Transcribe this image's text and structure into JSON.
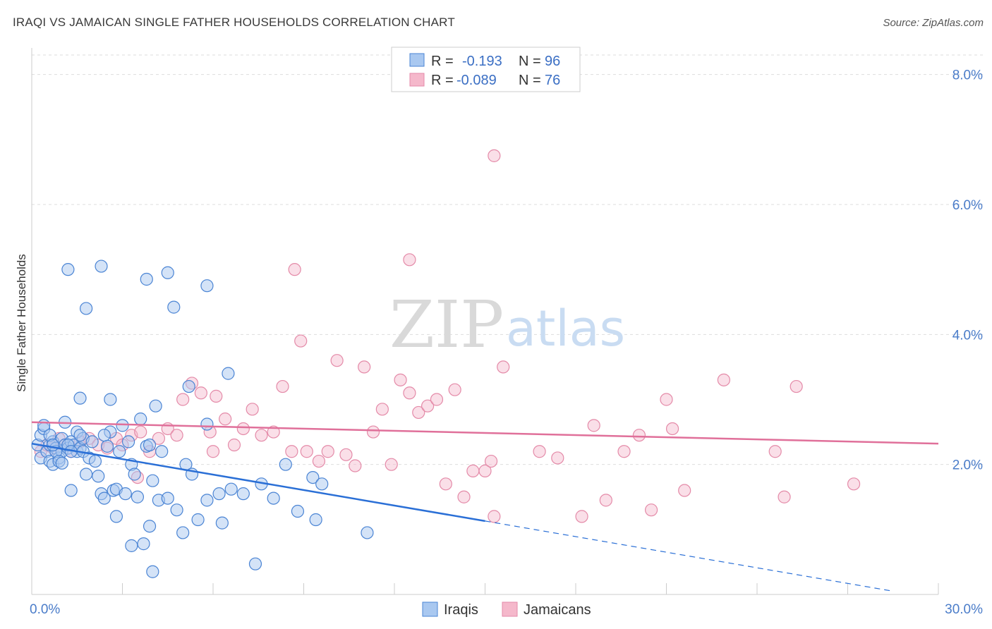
{
  "title": "IRAQI VS JAMAICAN SINGLE FATHER HOUSEHOLDS CORRELATION CHART",
  "source": "Source: ZipAtlas.com",
  "watermark": {
    "zip": "ZIP",
    "atlas": "atlas"
  },
  "colors": {
    "iraqi_fill": "#a9c8f0",
    "iraqi_stroke": "#4a84d4",
    "iraqi_line": "#2a6fd6",
    "jamaican_fill": "#f5b8cb",
    "jamaican_stroke": "#e48aa8",
    "jamaican_line": "#e0709a",
    "tick_text": "#4a7cc9",
    "grid": "#dddddd"
  },
  "legend": {
    "rows": [
      {
        "r_label": "R =",
        "r_value": "-0.193",
        "n_label": "N =",
        "n_value": "96"
      },
      {
        "r_label": "R =",
        "r_value": "-0.089",
        "n_label": "N =",
        "n_value": "76"
      }
    ]
  },
  "chart_data": {
    "type": "scatter",
    "title": "IRAQI VS JAMAICAN SINGLE FATHER HOUSEHOLDS CORRELATION CHART",
    "xlabel": "",
    "ylabel": "Single Father Households",
    "xlim": [
      0,
      30
    ],
    "ylim": [
      0,
      8.3
    ],
    "x_tick_labels": [
      "0.0%",
      "30.0%"
    ],
    "y_ticks": [
      2,
      4,
      6,
      8
    ],
    "y_tick_labels": [
      "2.0%",
      "4.0%",
      "6.0%",
      "8.0%"
    ],
    "legend_bottom": [
      "Iraqis",
      "Jamaicans"
    ],
    "series": [
      {
        "name": "Iraqis",
        "r": -0.193,
        "n": 96,
        "trend": {
          "x0": 0,
          "y0": 2.32,
          "x1": 15,
          "y1": 1.13,
          "dash_x1": 28.5,
          "dash_y1": 0.05
        },
        "points": [
          [
            0.2,
            2.3
          ],
          [
            0.3,
            2.45
          ],
          [
            0.3,
            2.1
          ],
          [
            0.4,
            2.55
          ],
          [
            0.5,
            2.2
          ],
          [
            0.6,
            2.3
          ],
          [
            0.6,
            2.05
          ],
          [
            0.7,
            2.35
          ],
          [
            0.7,
            2.0
          ],
          [
            0.8,
            2.25
          ],
          [
            0.9,
            2.1
          ],
          [
            1.0,
            2.4
          ],
          [
            1.0,
            2.2
          ],
          [
            1.1,
            2.3
          ],
          [
            1.1,
            2.65
          ],
          [
            1.2,
            2.25
          ],
          [
            1.3,
            2.35
          ],
          [
            1.4,
            2.3
          ],
          [
            1.5,
            2.5
          ],
          [
            1.5,
            2.2
          ],
          [
            1.6,
            2.25
          ],
          [
            1.7,
            2.4
          ],
          [
            1.7,
            2.2
          ],
          [
            1.8,
            1.85
          ],
          [
            1.9,
            2.1
          ],
          [
            0.4,
            2.6
          ],
          [
            0.6,
            2.45
          ],
          [
            0.8,
            2.2
          ],
          [
            0.9,
            2.05
          ],
          [
            1.2,
            2.3
          ],
          [
            1.3,
            2.2
          ],
          [
            1.6,
            2.45
          ],
          [
            2.0,
            2.35
          ],
          [
            2.1,
            2.05
          ],
          [
            2.2,
            1.82
          ],
          [
            2.3,
            1.55
          ],
          [
            2.4,
            1.48
          ],
          [
            2.5,
            2.28
          ],
          [
            2.6,
            2.5
          ],
          [
            2.7,
            1.6
          ],
          [
            2.8,
            1.62
          ],
          [
            2.9,
            2.2
          ],
          [
            3.0,
            2.6
          ],
          [
            3.2,
            2.35
          ],
          [
            3.3,
            2.0
          ],
          [
            3.4,
            1.85
          ],
          [
            3.5,
            1.5
          ],
          [
            3.6,
            2.7
          ],
          [
            3.8,
            2.28
          ],
          [
            3.9,
            2.3
          ],
          [
            4.0,
            1.75
          ],
          [
            4.1,
            2.9
          ],
          [
            4.2,
            1.45
          ],
          [
            4.3,
            2.2
          ],
          [
            2.4,
            2.45
          ],
          [
            2.6,
            3.0
          ],
          [
            2.8,
            1.2
          ],
          [
            3.1,
            1.55
          ],
          [
            3.3,
            0.75
          ],
          [
            3.7,
            0.78
          ],
          [
            3.9,
            1.05
          ],
          [
            4.0,
            0.35
          ],
          [
            4.5,
            1.48
          ],
          [
            4.8,
            1.3
          ],
          [
            5.0,
            0.95
          ],
          [
            5.1,
            2.0
          ],
          [
            5.3,
            1.85
          ],
          [
            5.5,
            1.15
          ],
          [
            5.8,
            1.45
          ],
          [
            6.2,
            1.55
          ],
          [
            6.3,
            1.1
          ],
          [
            6.6,
            1.62
          ],
          [
            7.0,
            1.55
          ],
          [
            5.2,
            3.2
          ],
          [
            5.8,
            2.62
          ],
          [
            6.5,
            3.4
          ],
          [
            7.6,
            1.7
          ],
          [
            8.0,
            1.48
          ],
          [
            8.4,
            2.0
          ],
          [
            8.8,
            1.28
          ],
          [
            9.4,
            1.15
          ],
          [
            9.3,
            1.8
          ],
          [
            9.6,
            1.7
          ],
          [
            11.1,
            0.95
          ],
          [
            7.4,
            0.47
          ],
          [
            1.2,
            5.0
          ],
          [
            2.3,
            5.05
          ],
          [
            3.8,
            4.85
          ],
          [
            4.5,
            4.95
          ],
          [
            5.8,
            4.75
          ],
          [
            1.8,
            4.4
          ],
          [
            4.7,
            4.42
          ],
          [
            1.6,
            3.02
          ],
          [
            1.3,
            1.6
          ],
          [
            1.0,
            2.02
          ],
          [
            0.7,
            2.3
          ]
        ]
      },
      {
        "name": "Jamaicans",
        "r": -0.089,
        "n": 76,
        "trend": {
          "x0": 0,
          "y0": 2.65,
          "x1": 30,
          "y1": 2.32
        },
        "points": [
          [
            0.3,
            2.2
          ],
          [
            0.5,
            2.3
          ],
          [
            0.7,
            2.25
          ],
          [
            0.9,
            2.4
          ],
          [
            1.1,
            2.3
          ],
          [
            1.3,
            2.2
          ],
          [
            1.6,
            2.35
          ],
          [
            1.9,
            2.4
          ],
          [
            2.2,
            2.3
          ],
          [
            2.5,
            2.25
          ],
          [
            2.8,
            2.4
          ],
          [
            3.0,
            2.3
          ],
          [
            3.3,
            2.45
          ],
          [
            3.6,
            2.5
          ],
          [
            3.9,
            2.2
          ],
          [
            4.2,
            2.4
          ],
          [
            4.5,
            2.55
          ],
          [
            4.8,
            2.45
          ],
          [
            5.0,
            3.0
          ],
          [
            5.3,
            3.25
          ],
          [
            5.6,
            3.1
          ],
          [
            5.9,
            2.5
          ],
          [
            6.1,
            3.05
          ],
          [
            6.4,
            2.7
          ],
          [
            6.7,
            2.3
          ],
          [
            7.0,
            2.55
          ],
          [
            7.3,
            2.85
          ],
          [
            7.6,
            2.45
          ],
          [
            8.0,
            2.5
          ],
          [
            8.3,
            3.2
          ],
          [
            8.6,
            2.2
          ],
          [
            8.9,
            3.9
          ],
          [
            9.1,
            2.2
          ],
          [
            9.5,
            2.05
          ],
          [
            9.8,
            2.2
          ],
          [
            10.1,
            3.6
          ],
          [
            10.4,
            2.15
          ],
          [
            10.7,
            1.98
          ],
          [
            11.0,
            3.5
          ],
          [
            11.3,
            2.5
          ],
          [
            11.6,
            2.85
          ],
          [
            11.9,
            2.0
          ],
          [
            12.2,
            3.3
          ],
          [
            12.5,
            3.1
          ],
          [
            12.8,
            2.8
          ],
          [
            13.1,
            2.9
          ],
          [
            13.4,
            3.0
          ],
          [
            13.7,
            1.7
          ],
          [
            14.0,
            3.15
          ],
          [
            14.3,
            1.5
          ],
          [
            14.6,
            1.9
          ],
          [
            15.0,
            1.9
          ],
          [
            15.2,
            2.05
          ],
          [
            15.6,
            3.5
          ],
          [
            15.3,
            1.2
          ],
          [
            16.8,
            2.2
          ],
          [
            17.4,
            2.1
          ],
          [
            18.2,
            1.2
          ],
          [
            18.6,
            2.6
          ],
          [
            19.0,
            1.45
          ],
          [
            19.6,
            2.2
          ],
          [
            20.1,
            2.45
          ],
          [
            20.5,
            1.3
          ],
          [
            21.0,
            3.0
          ],
          [
            21.2,
            2.55
          ],
          [
            21.6,
            1.6
          ],
          [
            22.9,
            3.3
          ],
          [
            24.6,
            2.2
          ],
          [
            24.9,
            1.5
          ],
          [
            25.3,
            3.2
          ],
          [
            27.2,
            1.7
          ],
          [
            8.7,
            5.0
          ],
          [
            12.5,
            5.15
          ],
          [
            15.3,
            6.75
          ],
          [
            3.5,
            1.8
          ],
          [
            6.0,
            2.2
          ]
        ]
      }
    ]
  }
}
